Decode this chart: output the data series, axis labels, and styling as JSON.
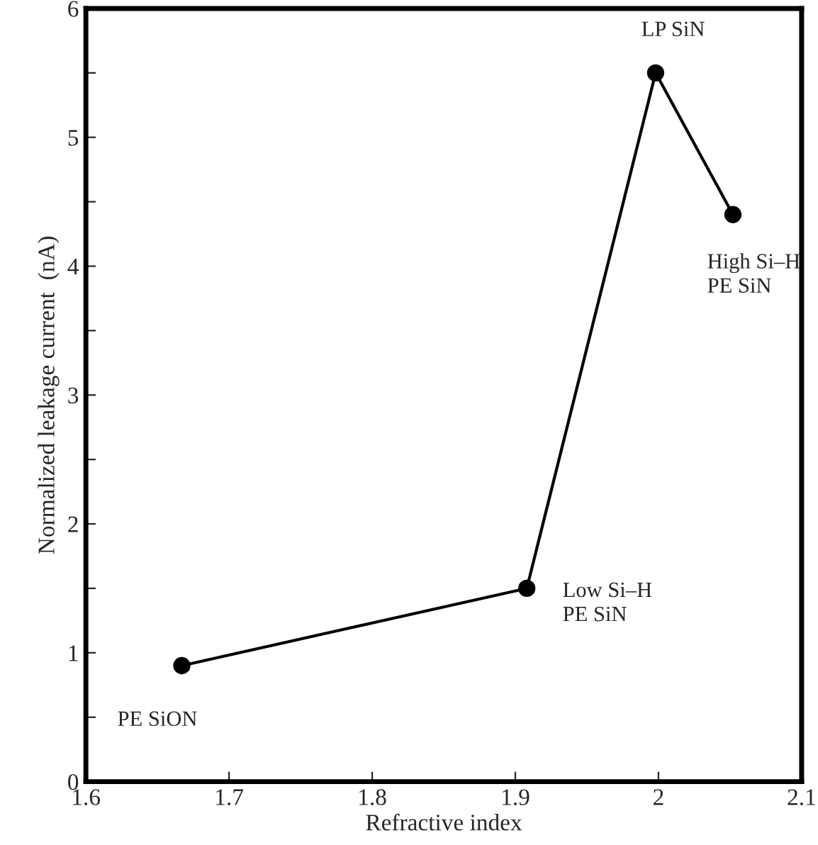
{
  "chart_data": {
    "type": "line",
    "xlabel": "Refractive index",
    "ylabel": "Normalized leakage current  (nA)",
    "x": [
      1.667,
      1.908,
      1.998,
      2.052
    ],
    "series": [
      {
        "color": "#000000",
        "values": [
          0.9,
          1.5,
          5.5,
          4.4
        ]
      }
    ],
    "marker": "circle",
    "line_style": "solid",
    "grid": false,
    "legend": false,
    "xlim": [
      1.6,
      2.1
    ],
    "xticks": [
      1.6,
      1.7,
      1.8,
      1.9,
      2,
      2.1
    ],
    "ylim": [
      0,
      6
    ],
    "yticks": [
      0,
      {
        "value": 0.5,
        "label": null
      },
      1,
      {
        "value": 1.5,
        "label": null
      },
      2,
      {
        "value": 2.5,
        "label": null
      },
      3,
      {
        "value": 3.5,
        "label": null
      },
      4,
      {
        "value": 4.5,
        "label": null
      },
      5,
      {
        "value": 5.5,
        "label": null
      },
      6
    ],
    "annotations": [
      {
        "text": "PE SiON",
        "x": 1.667,
        "y": 0.9
      },
      {
        "text": "Low Si–H\nPE SiN",
        "x": 1.908,
        "y": 1.5
      },
      {
        "text": "LP SiN",
        "x": 1.998,
        "y": 5.5
      },
      {
        "text": "High Si–H\nPE SiN",
        "x": 2.052,
        "y": 4.4
      }
    ]
  }
}
